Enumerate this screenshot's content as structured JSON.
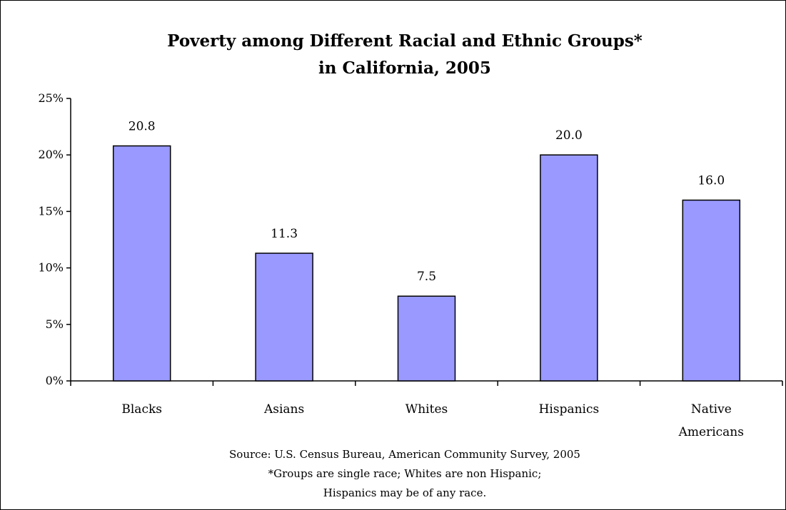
{
  "chart_data": {
    "type": "bar",
    "title_lines": [
      "Poverty among Different Racial and Ethnic Groups*",
      "in California, 2005"
    ],
    "categories": [
      [
        "Blacks"
      ],
      [
        "Asians"
      ],
      [
        "Whites"
      ],
      [
        "Hispanics"
      ],
      [
        "Native",
        "Americans"
      ]
    ],
    "values": [
      20.8,
      11.3,
      7.5,
      20.0,
      16.0
    ],
    "value_labels": [
      "20.8",
      "11.3",
      "7.5",
      "20.0",
      "16.0"
    ],
    "yticks": [
      {
        "value": 0,
        "label": "0%"
      },
      {
        "value": 5,
        "label": "5%"
      },
      {
        "value": 10,
        "label": "10%"
      },
      {
        "value": 15,
        "label": "15%"
      },
      {
        "value": 20,
        "label": "20%"
      },
      {
        "value": 25,
        "label": "25%"
      }
    ],
    "ylim": [
      0,
      25
    ],
    "grid": false,
    "legend": "none",
    "bar_color": "#9999ff",
    "bar_edge_color": "#000000",
    "footnotes": [
      "Source: U.S. Census Bureau, American Community Survey, 2005",
      "*Groups are single race; Whites are non Hispanic;",
      "Hispanics may be of any race."
    ]
  }
}
